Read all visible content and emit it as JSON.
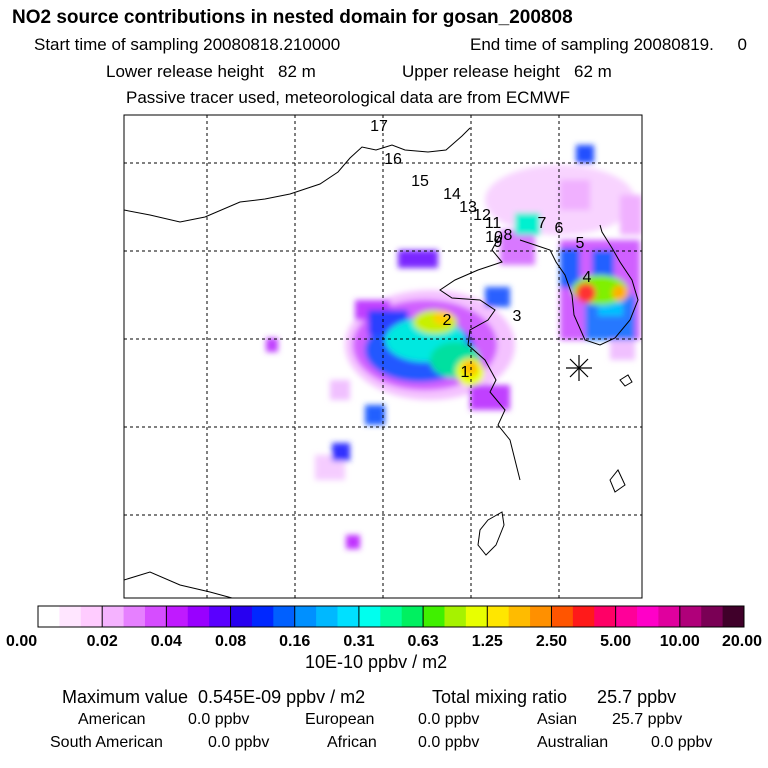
{
  "title": "NO2 source contributions in nested domain for gosan_200808",
  "header": {
    "start_label": "Start time of sampling 20080818.210000",
    "end_label": "End time of sampling 20080819.     0",
    "lower_label": "Lower release height   82 m",
    "upper_label": "Upper release height   62 m",
    "tracer_label": "Passive tracer used, meteorological data are from ECMWF"
  },
  "colorbar": {
    "colors": [
      "#ffffff",
      "#ffe6ff",
      "#ffccff",
      "#f5b3ff",
      "#e680ff",
      "#d64dff",
      "#c01aff",
      "#9900ff",
      "#5a00ff",
      "#2800f0",
      "#0028ff",
      "#0060ff",
      "#0090ff",
      "#00b8ff",
      "#00e0ff",
      "#00ffee",
      "#00ff9c",
      "#00f060",
      "#40f000",
      "#a6f200",
      "#e8ff00",
      "#ffe600",
      "#ffbb00",
      "#ff9000",
      "#ff5500",
      "#ff1a1a",
      "#ff0066",
      "#ff0099",
      "#ff00c8",
      "#e0009e",
      "#b0007a",
      "#7a0055",
      "#40002a"
    ],
    "tick_labels": [
      "0.00",
      "0.02",
      "0.04",
      "0.08",
      "0.16",
      "0.31",
      "0.63",
      "1.25",
      "2.50",
      "5.00",
      "10.00",
      "20.00"
    ],
    "unit_label": "10E-10 ppbv / m2"
  },
  "chart_data": {
    "type": "heatmap",
    "title": "NO2 source contributions in nested domain for gosan_200808",
    "unit": "10E-10 ppbv / m2",
    "scale_levels": [
      0.0,
      0.02,
      0.04,
      0.08,
      0.16,
      0.31,
      0.63,
      1.25,
      2.5,
      5.0,
      10.0,
      20.0
    ],
    "trajectory_labels": [
      "1",
      "2",
      "3",
      "4",
      "5",
      "6",
      "7",
      "8",
      "9",
      "10",
      "11",
      "12",
      "13",
      "14",
      "15",
      "16",
      "17"
    ],
    "receptor_marker": "gosan"
  },
  "footer": {
    "max_label": "Maximum value  0.545E-09 ppbv / m2",
    "total_label": "Total mixing ratio      25.7 ppbv",
    "regions": [
      {
        "name": "American",
        "value": "0.0 ppbv"
      },
      {
        "name": "European",
        "value": "0.0 ppbv"
      },
      {
        "name": "Asian",
        "value": "25.7 ppbv"
      },
      {
        "name": "South American",
        "value": "0.0 ppbv"
      },
      {
        "name": "African",
        "value": "0.0 ppbv"
      },
      {
        "name": "Australian",
        "value": "0.0 ppbv"
      }
    ]
  }
}
